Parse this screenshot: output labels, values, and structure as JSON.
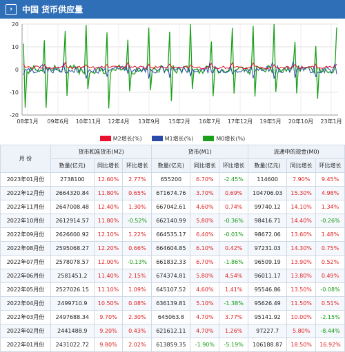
{
  "header": {
    "title": "中国 货币供应量"
  },
  "colors": {
    "m2": "#e8102a",
    "m1": "#2b4ba8",
    "m0": "#1aa01a"
  },
  "chart_data": {
    "type": "line",
    "x_ticks": [
      "08年1月",
      "09年6月",
      "10年11月",
      "12年4月",
      "13年9月",
      "15年2月",
      "16年7月",
      "17年12月",
      "19年5月",
      "20年10月",
      "23年1月"
    ],
    "y_ticks": [
      -20,
      -10,
      0,
      10,
      20
    ],
    "ylim": [
      -20,
      20
    ],
    "x_range": [
      "2008-01",
      "2023-01"
    ],
    "grid": true,
    "legend_position": "bottom",
    "series": [
      {
        "name": "M2增长(%)",
        "color": "#e8102a"
      },
      {
        "name": "M1增长(%)",
        "color": "#2b4ba8"
      },
      {
        "name": "M0增长(%)",
        "color": "#1aa01a"
      }
    ]
  },
  "table": {
    "month_header": "月 份",
    "groups": [
      "货币和准货币(M2)",
      "货币(M1)",
      "流通中的现金(M0)"
    ],
    "sub_headers": [
      "数量(亿元)",
      "同比增长",
      "环比增长",
      "数量(亿元)",
      "同比增长",
      "环比增长",
      "数量(亿元)",
      "同比增长",
      "环比增长"
    ],
    "rows": [
      [
        "2023年01月份",
        "2738100",
        "12.60%",
        "2.77%",
        "655200",
        "6.70%",
        "-2.45%",
        "114600",
        "7.90%",
        "9.45%"
      ],
      [
        "2022年12月份",
        "2664320.84",
        "11.80%",
        "0.65%",
        "671674.76",
        "3.70%",
        "0.69%",
        "104706.03",
        "15.30%",
        "4.98%"
      ],
      [
        "2022年11月份",
        "2647008.48",
        "12.40%",
        "1.30%",
        "667042.61",
        "4.60%",
        "0.74%",
        "99740.12",
        "14.10%",
        "1.34%"
      ],
      [
        "2022年10月份",
        "2612914.57",
        "11.80%",
        "-0.52%",
        "662140.99",
        "5.80%",
        "-0.36%",
        "98416.71",
        "14.40%",
        "-0.26%"
      ],
      [
        "2022年09月份",
        "2626600.92",
        "12.10%",
        "1.22%",
        "664535.17",
        "6.40%",
        "-0.01%",
        "98672.06",
        "13.60%",
        "1.48%"
      ],
      [
        "2022年08月份",
        "2595068.27",
        "12.20%",
        "0.66%",
        "664604.85",
        "6.10%",
        "0.42%",
        "97231.03",
        "14.30%",
        "0.75%"
      ],
      [
        "2022年07月份",
        "2578078.57",
        "12.00%",
        "-0.13%",
        "661832.33",
        "6.70%",
        "-1.86%",
        "96509.19",
        "13.90%",
        "0.52%"
      ],
      [
        "2022年06月份",
        "2581451.2",
        "11.40%",
        "2.15%",
        "674374.81",
        "5.80%",
        "4.54%",
        "96011.17",
        "13.80%",
        "0.49%"
      ],
      [
        "2022年05月份",
        "2527026.15",
        "11.10%",
        "1.09%",
        "645107.52",
        "4.60%",
        "1.41%",
        "95546.86",
        "13.50%",
        "-0.08%"
      ],
      [
        "2022年04月份",
        "2499710.9",
        "10.50%",
        "0.08%",
        "636139.81",
        "5.10%",
        "-1.38%",
        "95626.49",
        "11.50%",
        "0.51%"
      ],
      [
        "2022年03月份",
        "2497688.34",
        "9.70%",
        "2.30%",
        "645063.8",
        "4.70%",
        "3.77%",
        "95141.92",
        "10.00%",
        "-2.15%"
      ],
      [
        "2022年02月份",
        "2441488.9",
        "9.20%",
        "0.43%",
        "621612.11",
        "4.70%",
        "1.26%",
        "97227.7",
        "5.80%",
        "-8.44%"
      ],
      [
        "2022年01月份",
        "2431022.72",
        "9.80%",
        "2.02%",
        "613859.35",
        "-1.90%",
        "-5.19%",
        "106188.87",
        "18.50%",
        "16.92%"
      ]
    ]
  }
}
